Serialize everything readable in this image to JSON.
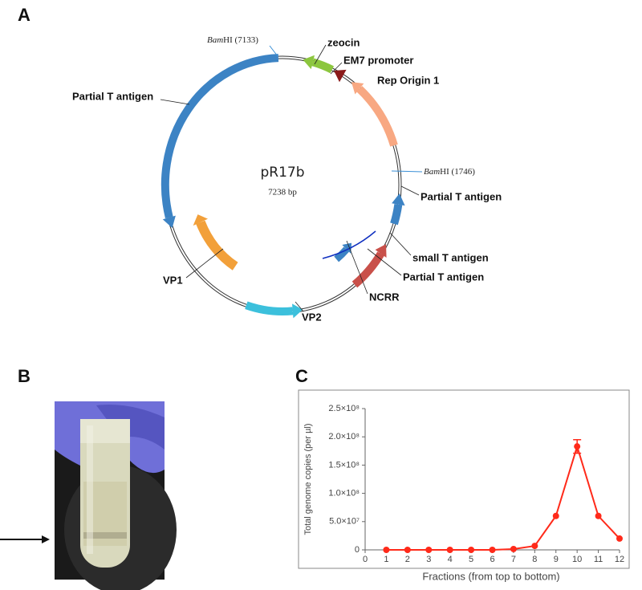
{
  "panels": {
    "a": "A",
    "b": "B",
    "c": "C"
  },
  "plasmid": {
    "name": "pR17b",
    "size": "7238 bp",
    "sites": [
      {
        "italic": "Bam",
        "rest": "HI (7133)"
      },
      {
        "italic": "Bam",
        "rest": "HI (1746)"
      }
    ],
    "features": [
      "zeocin",
      "EM7 promoter",
      "Rep Origin 1",
      "Partial T antigen",
      "Partial T antigen",
      "small T antigen",
      "Partial T antigen",
      "NCRR",
      "VP2",
      "VP1"
    ]
  },
  "chart_data": {
    "type": "line",
    "xlabel": "Fractions (from top to bottom)",
    "ylabel": "Total genome copies (per µl)",
    "x": [
      1,
      2,
      3,
      4,
      5,
      6,
      7,
      8,
      9,
      10,
      11,
      12
    ],
    "values": [
      0,
      0,
      0,
      0,
      0,
      0,
      1500000,
      7000000,
      60000000,
      183000000,
      60000000,
      20000000
    ],
    "errors": [
      null,
      null,
      null,
      null,
      null,
      null,
      null,
      null,
      null,
      12000000,
      null,
      null
    ],
    "color": "#ff2a1a",
    "xlim": [
      0,
      12
    ],
    "ylim": [
      0,
      250000000
    ],
    "xticks": [
      0,
      1,
      2,
      3,
      4,
      5,
      6,
      7,
      8,
      9,
      10,
      11,
      12
    ],
    "yticks": [
      0,
      {
        "value": 50000000,
        "label": "5.0×10⁷"
      },
      {
        "value": 100000000,
        "label": "1.0×10⁸"
      },
      {
        "value": 150000000,
        "label": "1.5×10⁸"
      },
      {
        "value": 200000000,
        "label": "2.0×10⁸"
      },
      {
        "value": 250000000,
        "label": "2.5×10⁸"
      }
    ]
  }
}
